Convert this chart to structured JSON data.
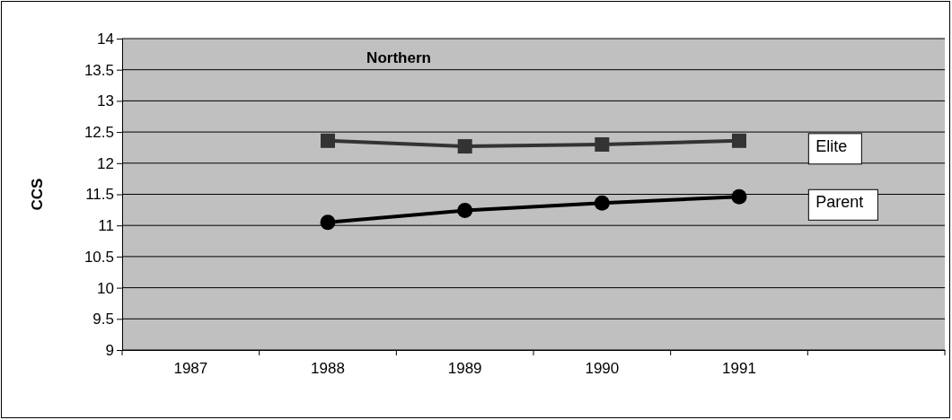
{
  "chart_data": {
    "type": "line",
    "title": "Northern",
    "ylabel": "CCS",
    "categories": [
      "1987",
      "1988",
      "1989",
      "1990",
      "1991",
      null
    ],
    "series": [
      {
        "name": "Elite",
        "color": "#333333",
        "marker": "square",
        "values": [
          null,
          12.36,
          12.27,
          12.3,
          12.36,
          null
        ]
      },
      {
        "name": "Parent",
        "color": "#000000",
        "marker": "circle",
        "values": [
          null,
          11.05,
          11.24,
          11.36,
          11.46,
          null
        ]
      }
    ],
    "ylim": [
      9,
      14
    ],
    "yticks": [
      9,
      9.5,
      10,
      10.5,
      11,
      11.5,
      12,
      12.5,
      13,
      13.5,
      14
    ],
    "grid": "y",
    "legend": false
  }
}
